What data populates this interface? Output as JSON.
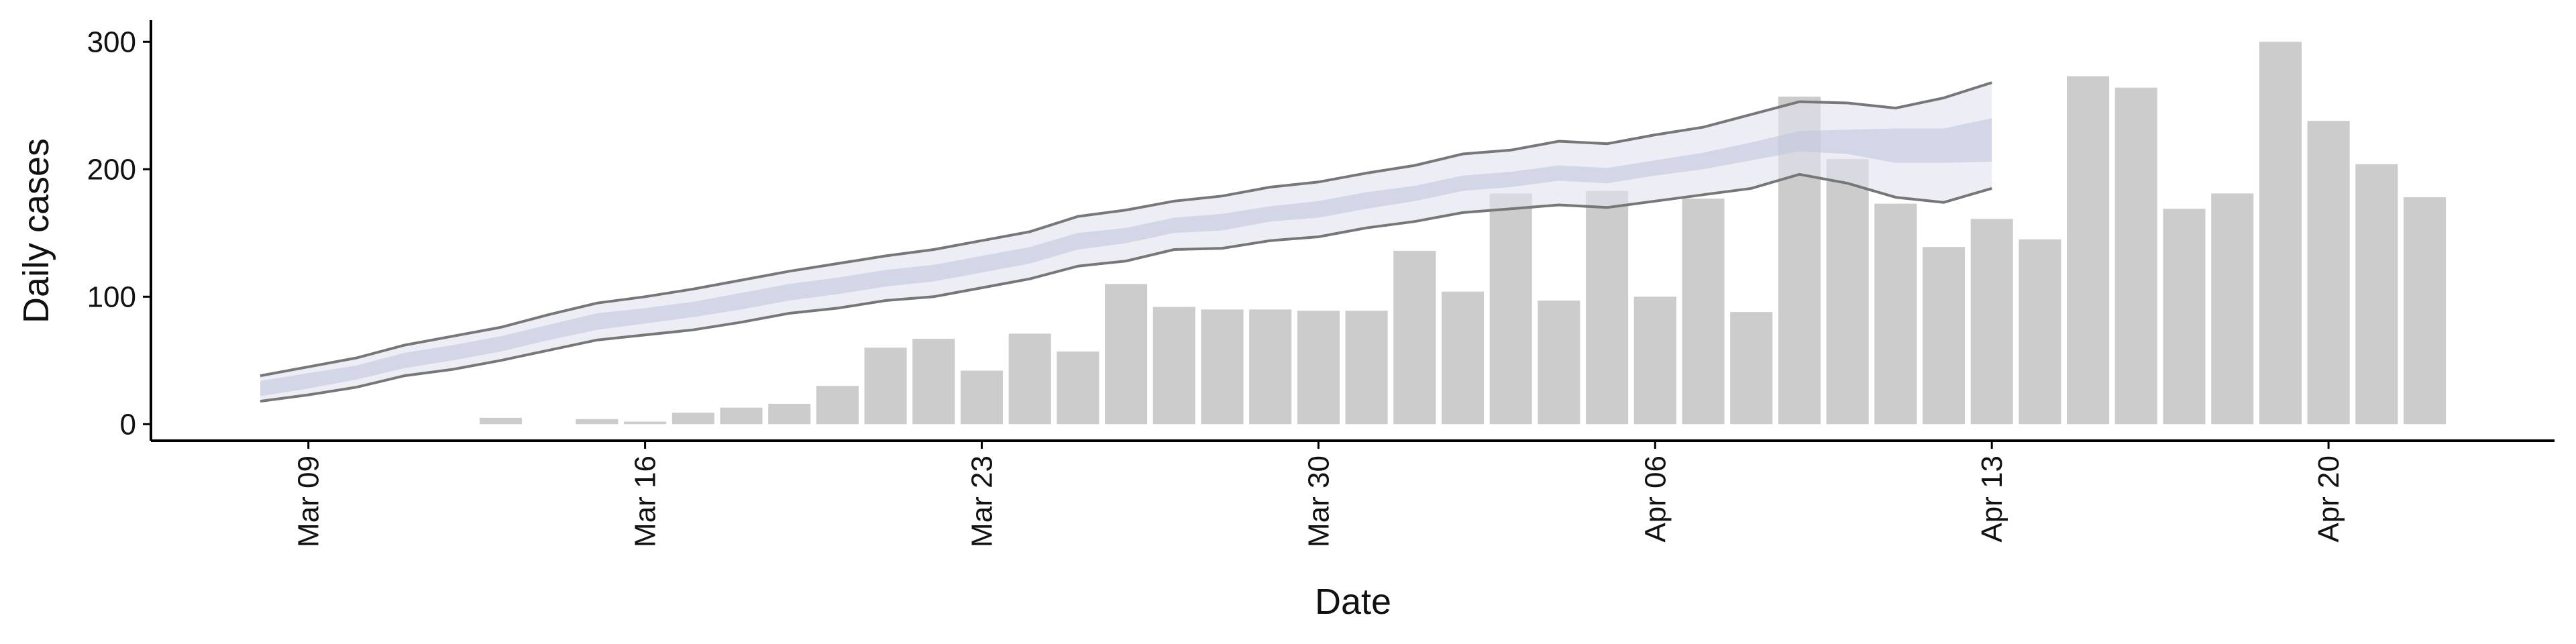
{
  "chart_data": {
    "type": "bar",
    "x_label": "Date",
    "y_label": "Daily cases",
    "x": [
      "Mar 08",
      "Mar 09",
      "Mar 10",
      "Mar 11",
      "Mar 12",
      "Mar 13",
      "Mar 14",
      "Mar 15",
      "Mar 16",
      "Mar 17",
      "Mar 18",
      "Mar 19",
      "Mar 20",
      "Mar 21",
      "Mar 22",
      "Mar 23",
      "Mar 24",
      "Mar 25",
      "Mar 26",
      "Mar 27",
      "Mar 28",
      "Mar 29",
      "Mar 30",
      "Mar 31",
      "Apr 01",
      "Apr 02",
      "Apr 03",
      "Apr 04",
      "Apr 05",
      "Apr 06",
      "Apr 07",
      "Apr 08",
      "Apr 09",
      "Apr 10",
      "Apr 11",
      "Apr 12",
      "Apr 13",
      "Apr 14",
      "Apr 15",
      "Apr 16",
      "Apr 17",
      "Apr 18",
      "Apr 19",
      "Apr 20",
      "Apr 21",
      "Apr 22"
    ],
    "values": [
      null,
      null,
      null,
      null,
      null,
      5,
      0,
      4,
      2,
      9,
      13,
      16,
      30,
      60,
      67,
      42,
      71,
      57,
      110,
      92,
      90,
      90,
      89,
      89,
      136,
      104,
      181,
      97,
      183,
      100,
      177,
      88,
      257,
      208,
      173,
      139,
      161,
      145,
      273,
      264,
      169,
      181,
      300,
      238,
      204,
      178
    ],
    "color": "#cccccc",
    "bands": [
      {
        "color": "#dfe1ee",
        "line_color": "#777777",
        "upper": [
          38,
          45,
          52,
          62,
          69,
          76,
          86,
          95,
          100,
          106,
          113,
          120,
          126,
          132,
          137,
          144,
          151,
          163,
          168,
          175,
          179,
          186,
          190,
          197,
          203,
          212,
          215,
          222,
          220,
          227,
          233,
          243,
          253,
          252,
          248,
          256,
          268,
          null,
          null,
          null,
          null,
          null,
          null,
          null,
          null,
          null
        ],
        "lower": [
          18,
          23,
          29,
          38,
          43,
          50,
          58,
          66,
          70,
          74,
          80,
          87,
          91,
          97,
          100,
          107,
          114,
          124,
          128,
          137,
          138,
          144,
          147,
          154,
          159,
          166,
          169,
          172,
          170,
          175,
          180,
          185,
          196,
          189,
          178,
          174,
          185,
          null,
          null,
          null,
          null,
          null,
          null,
          null,
          null,
          null
        ]
      },
      {
        "color": "#c3c7dc",
        "line_color": null,
        "upper": [
          34,
          40,
          46,
          56,
          62,
          69,
          78,
          87,
          91,
          96,
          103,
          110,
          115,
          121,
          125,
          132,
          139,
          150,
          154,
          162,
          165,
          171,
          175,
          182,
          187,
          195,
          198,
          203,
          201,
          207,
          213,
          221,
          230,
          231,
          232,
          232,
          240,
          null,
          null,
          null,
          null,
          null,
          null,
          null,
          null,
          null
        ],
        "lower": [
          22,
          28,
          35,
          44,
          50,
          57,
          66,
          74,
          79,
          84,
          90,
          97,
          102,
          108,
          112,
          119,
          126,
          137,
          142,
          150,
          152,
          159,
          162,
          169,
          175,
          183,
          186,
          191,
          189,
          195,
          200,
          207,
          214,
          212,
          205,
          205,
          206,
          null,
          null,
          null,
          null,
          null,
          null,
          null,
          null,
          null
        ]
      }
    ],
    "ylim": [
      -13,
      317
    ],
    "yticks": [
      0,
      100,
      200,
      300
    ],
    "xticks": [
      "Mar 09",
      "Mar 16",
      "Mar 23",
      "Mar 30",
      "Apr 06",
      "Apr 13",
      "Apr 20"
    ],
    "grid": false
  }
}
